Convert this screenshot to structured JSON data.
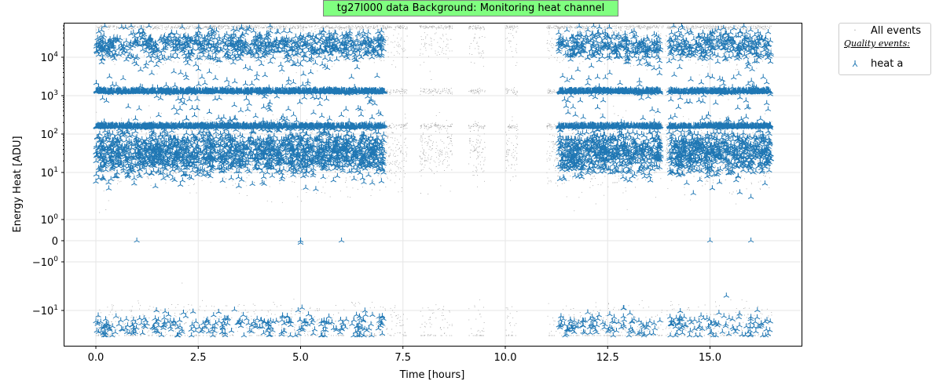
{
  "title": "tg27l000 data Background: Monitoring heat channel",
  "legend": {
    "all_label": "All events",
    "quality_header": "Quality events:",
    "heat_label": "heat a"
  },
  "colors": {
    "all_events": "#a9a9a9",
    "quality_events": "#1f77b4",
    "title_bg": "#80ff80"
  },
  "chart_data": {
    "type": "scatter",
    "title": "tg27l000 data Background: Monitoring heat channel",
    "xlabel": "Time [hours]",
    "ylabel": "Energy Heat [ADU]",
    "xlim": [
      -0.8,
      17.2
    ],
    "x_ticks": [
      0.0,
      2.5,
      5.0,
      7.5,
      10.0,
      12.5,
      15.0
    ],
    "x_tick_labels": [
      "0.0",
      "2.5",
      "5.0",
      "7.5",
      "10.0",
      "12.5",
      "15.0"
    ],
    "y_scale": "symlog",
    "y_ticks": [
      10000,
      1000,
      100,
      10,
      1,
      0,
      -1,
      -10
    ],
    "y_tick_labels": [
      "10^4",
      "10^3",
      "10^2",
      "10^1",
      "10^0",
      "0",
      "−10^0",
      "−10^1"
    ],
    "grid": true,
    "legend_position": "outside top-right",
    "series": [
      {
        "name": "All events",
        "marker": "point",
        "segments": [
          [
            0.0,
            7.1
          ],
          [
            7.1,
            7.6
          ],
          [
            7.9,
            8.7
          ],
          [
            9.1,
            9.5
          ],
          [
            10.0,
            10.3
          ],
          [
            11.0,
            13.85
          ],
          [
            13.9,
            16.5
          ]
        ],
        "bands": [
          {
            "center": 32,
            "spread_decades": 0.3,
            "note": "dense low-energy band"
          },
          {
            "center": 160,
            "spread_decades": 0.03
          },
          {
            "center": 1300,
            "spread_decades": 0.03
          },
          {
            "center": 20000,
            "spread_decades": 0.2
          },
          {
            "center": 55000,
            "spread_decades": 0.02
          },
          {
            "center": -16,
            "spread_decades": 0.1
          }
        ]
      },
      {
        "name": "heat a",
        "marker": "tri_up",
        "segments": [
          [
            0.0,
            7.05
          ],
          [
            11.3,
            13.8
          ],
          [
            14.0,
            16.5
          ]
        ],
        "bands": [
          {
            "center": 32,
            "spread_decades": 0.28
          },
          {
            "center": 160,
            "spread_decades": 0.02
          },
          {
            "center": 1300,
            "spread_decades": 0.02
          },
          {
            "center": 20000,
            "spread_decades": 0.18
          },
          {
            "center": -15,
            "spread_decades": 0.08
          }
        ],
        "outliers": [
          [
            1.0,
            0
          ],
          [
            5.0,
            0
          ],
          [
            5.0,
            -0.1
          ],
          [
            6.0,
            0
          ],
          [
            15.0,
            0
          ],
          [
            16.0,
            0
          ],
          [
            16.0,
            3
          ],
          [
            15.4,
            -5
          ],
          [
            6.75,
            6
          ],
          [
            4.1,
            8
          ]
        ]
      }
    ]
  }
}
